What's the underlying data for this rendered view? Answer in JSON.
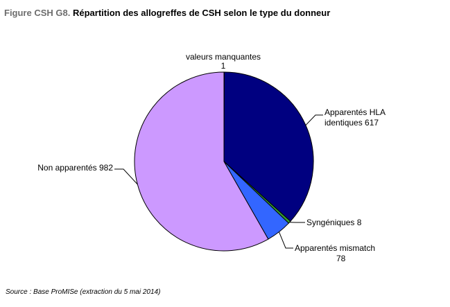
{
  "title": {
    "prefix": "Figure CSH G8.",
    "text": "Répartition des allogreffes de CSH selon le type du donneur"
  },
  "source": "Source : Base ProMISe (extraction du 5 mai 2014)",
  "chart_data": {
    "type": "pie",
    "title": "Répartition des allogreffes de CSH selon le type du donneur",
    "slices": [
      {
        "label": "valeurs manquantes",
        "value": 1,
        "color": "#000000"
      },
      {
        "label": "Apparentés HLA identiques",
        "value": 617,
        "color": "#000080"
      },
      {
        "label": "Syngéniques",
        "value": 8,
        "color": "#339933"
      },
      {
        "label": "Apparentés mismatch",
        "value": 78,
        "color": "#3366ff"
      },
      {
        "label": "Non apparentés",
        "value": 982,
        "color": "#cc99ff"
      }
    ],
    "data_labels": [
      [
        "valeurs manquantes",
        "1"
      ],
      [
        "Apparentés HLA",
        "identiques 617"
      ],
      [
        "Syngéniques 8"
      ],
      [
        "Apparentés mismatch",
        "78"
      ],
      [
        "Non apparentés 982"
      ]
    ],
    "legend": "none"
  }
}
